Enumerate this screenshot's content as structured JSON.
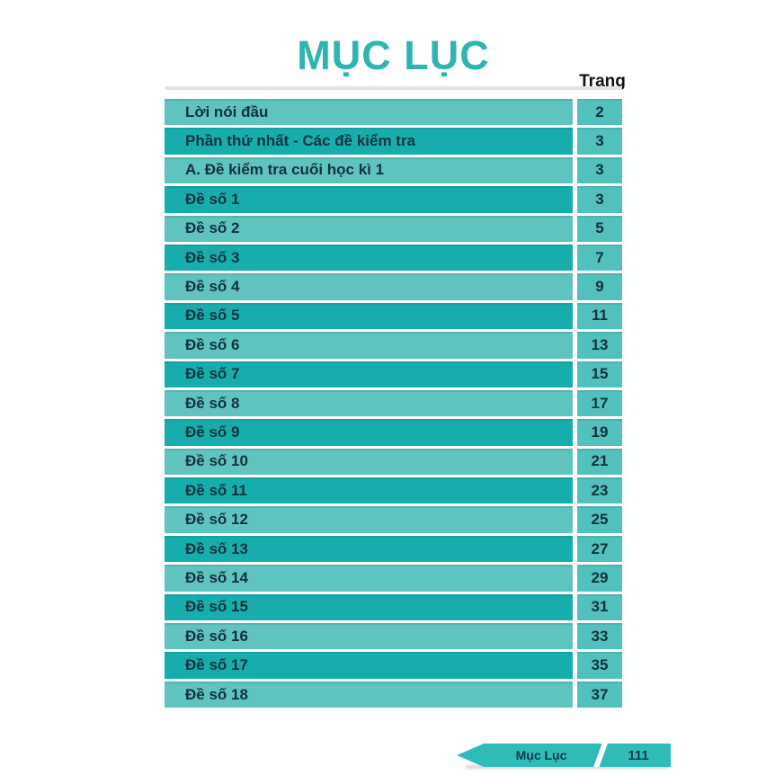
{
  "title": "MỤC LỤC",
  "column_header": "Trang",
  "toc": {
    "rows": [
      {
        "label": "Lời nói đầu",
        "page": "2"
      },
      {
        "label": "Phần thứ nhất - Các đề kiểm tra",
        "page": "3"
      },
      {
        "label": "A. Đề kiểm tra cuối học kì 1",
        "page": "3"
      },
      {
        "label": "Đề số 1",
        "page": "3"
      },
      {
        "label": "Đề số 2",
        "page": "5"
      },
      {
        "label": "Đề số 3",
        "page": "7"
      },
      {
        "label": "Đề số 4",
        "page": "9"
      },
      {
        "label": "Đề số 5",
        "page": "11"
      },
      {
        "label": "Đề số 6",
        "page": "13"
      },
      {
        "label": "Đề số 7",
        "page": "15"
      },
      {
        "label": "Đề số 8",
        "page": "17"
      },
      {
        "label": "Đề số 9",
        "page": "19"
      },
      {
        "label": "Đề số 10",
        "page": "21"
      },
      {
        "label": "Đề số 11",
        "page": "23"
      },
      {
        "label": "Đề số 12",
        "page": "25"
      },
      {
        "label": "Đề số 13",
        "page": "27"
      },
      {
        "label": "Đề số 14",
        "page": "29"
      },
      {
        "label": "Đề số 15",
        "page": "31"
      },
      {
        "label": "Đề số 16",
        "page": "33"
      },
      {
        "label": "Đề số 17",
        "page": "35"
      },
      {
        "label": "Đề số 18",
        "page": "37"
      }
    ]
  },
  "footer": {
    "label": "Mục Lục",
    "page_number": "111"
  },
  "colors": {
    "title_teal": "#2fb5b1",
    "header_text": "#111111",
    "row_light": "#5fc3bf",
    "row_dark": "#17adac",
    "page_cell": "#52c0bc",
    "row_text": "#12333c",
    "ribbon": "#2fbcb8",
    "ribbon_text": "#0e3945"
  }
}
